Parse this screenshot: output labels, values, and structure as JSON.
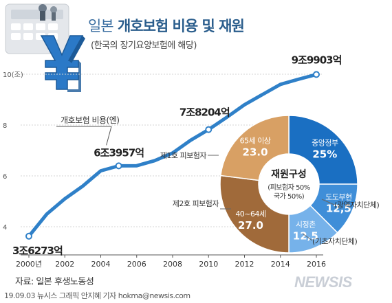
{
  "header": {
    "title_part1": "일본",
    "title_part2": "개호보험 비용 및 재원",
    "subtitle": "(한국의 장기요양보험에 해당)"
  },
  "footer": {
    "source": "자료: 일본 후생노동성",
    "credit": "19.09.03 뉴시스 그래픽 안지혜 기자 hokma@newsis.com",
    "brand": "NEWSIS"
  },
  "decoration": {
    "icon": "yen-icon",
    "accent": "#1f75c4"
  },
  "chart_data": [
    {
      "type": "line",
      "unit_label": "10(조)",
      "series_label": "개호보험 비용(엔)",
      "x": [
        2000,
        2001,
        2002,
        2003,
        2004,
        2005,
        2006,
        2007,
        2008,
        2009,
        2010,
        2011,
        2012,
        2013,
        2014,
        2015,
        2016
      ],
      "values": [
        3.6273,
        4.5,
        5.1,
        5.6,
        6.2,
        6.3957,
        6.4,
        6.6,
        6.9,
        7.4,
        7.8204,
        8.3,
        8.8,
        9.2,
        9.6,
        9.8,
        9.9903
      ],
      "xticks": [
        "2000년",
        "2002",
        "2004",
        "2006",
        "2008",
        "2010",
        "2012",
        "2014",
        "2016"
      ],
      "yticks": [
        "4",
        "6",
        "8",
        "10(조)"
      ],
      "ylim": [
        3,
        10
      ],
      "line_color": "#2f80c8",
      "annotations": [
        {
          "year": 2000,
          "text": "3조6273억"
        },
        {
          "year": 2005,
          "text": "6조3957억"
        },
        {
          "year": 2010,
          "text": "7조8204억"
        },
        {
          "year": 2016,
          "text": "9조9903억"
        }
      ]
    },
    {
      "type": "pie",
      "center_title": "재원구성",
      "center_sub1": "(피보험자 50%",
      "center_sub2": "국가 50%)",
      "slices": [
        {
          "label": "중앙정부",
          "value": 25,
          "value_text": "25%",
          "color": "#1a6fc2"
        },
        {
          "label": "도도부현",
          "value": 12.5,
          "value_text": "12,5",
          "color": "#3f8ed8",
          "note": "(광역자치단체)"
        },
        {
          "label": "시정촌",
          "value": 12.5,
          "value_text": "12,5",
          "color": "#76b2ea",
          "note": "(기초자치단체)"
        },
        {
          "label": "40~64세",
          "value": 27,
          "value_text": "27.0",
          "color": "#a06a3a",
          "note": "제2호 피보험자"
        },
        {
          "label": "65세 이상",
          "value": 23,
          "value_text": "23.0",
          "color": "#d8a064",
          "note": "제1호 피보험자"
        }
      ]
    }
  ]
}
